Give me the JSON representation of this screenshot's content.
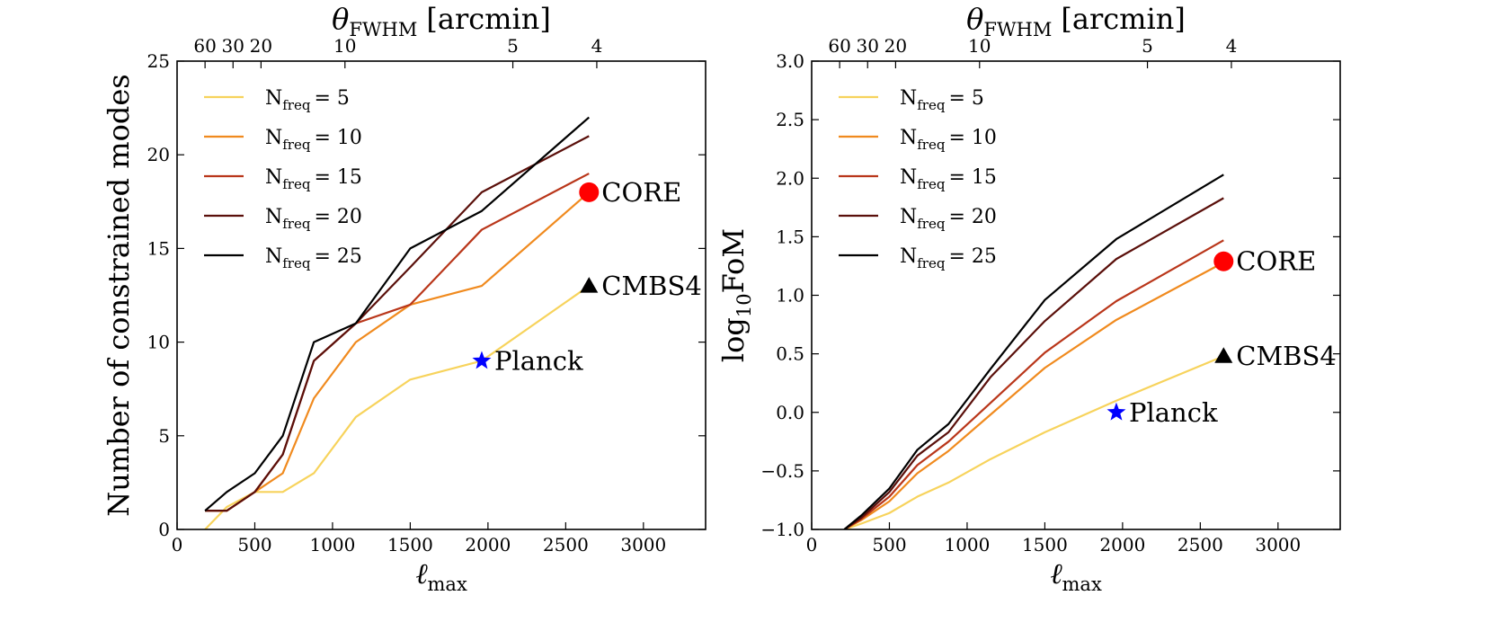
{
  "chart_data": [
    {
      "type": "line",
      "name": "modes",
      "ylabel": "Number of constrained modes",
      "xlabel": "ℓ",
      "xlabel_sub": "max",
      "top_label": "θ",
      "top_label_sub": "FWHM",
      "top_label_unit": "[arcmin]",
      "xlim": [
        0,
        3400
      ],
      "ylim": [
        0,
        25
      ],
      "xticks": [
        0,
        500,
        1000,
        1500,
        2000,
        2500,
        3000
      ],
      "yticks": [
        0,
        5,
        10,
        15,
        20,
        25
      ],
      "top_ticks": [
        {
          "label": "60",
          "l": 180
        },
        {
          "label": "30",
          "l": 360
        },
        {
          "label": "20",
          "l": 540
        },
        {
          "label": "10",
          "l": 1080
        },
        {
          "label": "5",
          "l": 2160
        },
        {
          "label": "4",
          "l": 2700
        }
      ],
      "series": [
        {
          "name": "N",
          "sub": "freq",
          "eq": "= 5",
          "color": "#f7d35c",
          "x": [
            180,
            320,
            500,
            680,
            880,
            1150,
            1500,
            1960,
            2650
          ],
          "y": [
            0,
            1.2,
            2,
            2,
            3,
            6,
            8,
            9,
            13
          ]
        },
        {
          "name": "N",
          "sub": "freq",
          "eq": "= 10",
          "color": "#f08a1e",
          "x": [
            180,
            320,
            500,
            680,
            880,
            1150,
            1500,
            1960,
            2650
          ],
          "y": [
            1,
            1,
            2,
            3,
            7,
            10,
            12,
            13,
            18
          ]
        },
        {
          "name": "N",
          "sub": "freq",
          "eq": "= 15",
          "color": "#b9361a",
          "x": [
            180,
            320,
            500,
            680,
            880,
            1150,
            1500,
            1960,
            2650
          ],
          "y": [
            1,
            1,
            2,
            4,
            9,
            11,
            12,
            16,
            19
          ]
        },
        {
          "name": "N",
          "sub": "freq",
          "eq": "= 20",
          "color": "#5a0f0a",
          "x": [
            180,
            320,
            500,
            680,
            880,
            1150,
            1500,
            1960,
            2650
          ],
          "y": [
            1,
            1,
            2,
            4,
            9,
            11,
            14,
            18,
            21
          ]
        },
        {
          "name": "N",
          "sub": "freq",
          "eq": "= 25",
          "color": "#000000",
          "x": [
            180,
            320,
            500,
            680,
            880,
            1150,
            1500,
            1960,
            2650
          ],
          "y": [
            1,
            2,
            3,
            5,
            10,
            11,
            15,
            17,
            22
          ]
        }
      ],
      "markers": [
        {
          "label": "CORE",
          "shape": "circle",
          "color": "#ff0000",
          "x": 2650,
          "y": 18
        },
        {
          "label": "CMBS4",
          "shape": "triangle",
          "color": "#000000",
          "x": 2650,
          "y": 13
        },
        {
          "label": "Planck",
          "shape": "star",
          "color": "#0000ff",
          "x": 1960,
          "y": 9
        }
      ]
    },
    {
      "type": "line",
      "name": "fom",
      "ylabel": "log",
      "ylabel_sub": "10",
      "ylabel_rest": "FoM",
      "xlabel": "ℓ",
      "xlabel_sub": "max",
      "top_label": "θ",
      "top_label_sub": "FWHM",
      "top_label_unit": "[arcmin]",
      "xlim": [
        0,
        3400
      ],
      "ylim": [
        -1.0,
        3.0
      ],
      "xticks": [
        0,
        500,
        1000,
        1500,
        2000,
        2500,
        3000
      ],
      "yticks": [
        -1.0,
        -0.5,
        0.0,
        0.5,
        1.0,
        1.5,
        2.0,
        2.5,
        3.0
      ],
      "top_ticks": [
        {
          "label": "60",
          "l": 180
        },
        {
          "label": "30",
          "l": 360
        },
        {
          "label": "20",
          "l": 540
        },
        {
          "label": "10",
          "l": 1080
        },
        {
          "label": "5",
          "l": 2160
        },
        {
          "label": "4",
          "l": 2700
        }
      ],
      "series": [
        {
          "name": "N",
          "sub": "freq",
          "eq": "= 5",
          "color": "#f7d35c",
          "x": [
            210,
            320,
            500,
            680,
            880,
            1150,
            1500,
            1960,
            2650
          ],
          "y": [
            -1.0,
            -0.95,
            -0.86,
            -0.72,
            -0.6,
            -0.4,
            -0.17,
            0.1,
            0.48
          ]
        },
        {
          "name": "N",
          "sub": "freq",
          "eq": "= 10",
          "color": "#f08a1e",
          "x": [
            210,
            320,
            500,
            680,
            880,
            1150,
            1500,
            1960,
            2650
          ],
          "y": [
            -1.0,
            -0.92,
            -0.76,
            -0.52,
            -0.33,
            -0.02,
            0.38,
            0.79,
            1.28
          ]
        },
        {
          "name": "N",
          "sub": "freq",
          "eq": "= 15",
          "color": "#b9361a",
          "x": [
            210,
            320,
            500,
            680,
            880,
            1150,
            1500,
            1960,
            2650
          ],
          "y": [
            -1.0,
            -0.91,
            -0.72,
            -0.45,
            -0.25,
            0.08,
            0.51,
            0.95,
            1.47
          ]
        },
        {
          "name": "N",
          "sub": "freq",
          "eq": "= 20",
          "color": "#5a0f0a",
          "x": [
            210,
            320,
            500,
            680,
            880,
            1150,
            1500,
            1960,
            2650
          ],
          "y": [
            -1.0,
            -0.9,
            -0.68,
            -0.37,
            -0.17,
            0.3,
            0.78,
            1.31,
            1.83
          ]
        },
        {
          "name": "N",
          "sub": "freq",
          "eq": "= 25",
          "color": "#000000",
          "x": [
            210,
            320,
            500,
            680,
            880,
            1150,
            1500,
            1960,
            2650
          ],
          "y": [
            -1.0,
            -0.88,
            -0.65,
            -0.32,
            -0.1,
            0.37,
            0.96,
            1.48,
            2.03
          ]
        }
      ],
      "markers": [
        {
          "label": "CORE",
          "shape": "circle",
          "color": "#ff0000",
          "x": 2650,
          "y": 1.29
        },
        {
          "label": "CMBS4",
          "shape": "triangle",
          "color": "#000000",
          "x": 2650,
          "y": 0.48
        },
        {
          "label": "Planck",
          "shape": "star",
          "color": "#0000ff",
          "x": 1960,
          "y": 0.0
        }
      ]
    }
  ]
}
